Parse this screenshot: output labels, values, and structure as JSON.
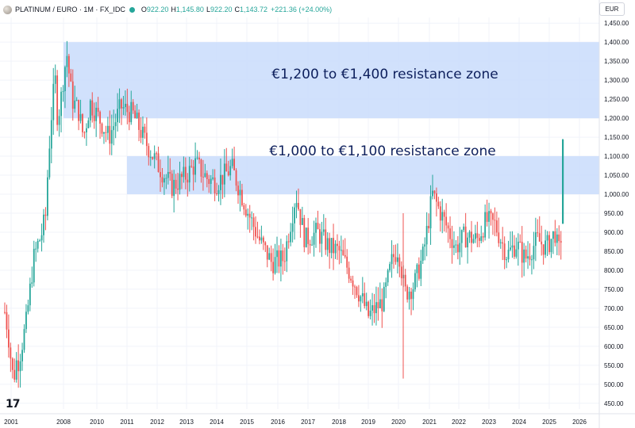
{
  "header": {
    "symbol": "PLATINUM / EURO · 1M · FX_IDC",
    "open_label": "O",
    "open": "922.20",
    "high_label": "H",
    "high": "1,145.80",
    "low_label": "L",
    "low": "922.20",
    "close_label": "C",
    "close": "1,143.72",
    "change": "+221.36 (+24.00%)"
  },
  "currency": "EUR",
  "logo": "17",
  "colors": {
    "up": "#26a69a",
    "down": "#ef5350",
    "zone_fill": "#c9dcfb",
    "zone_text": "#0d1f5c",
    "grid": "#f0f3fa",
    "axis_text": "#131722"
  },
  "chart_data": {
    "type": "candlestick",
    "symbol": "PLATINUM / EURO",
    "interval": "1M",
    "source": "FX_IDC",
    "currency": "EUR",
    "x_ticks": [
      "2001",
      "2008",
      "2010",
      "2011",
      "2012",
      "2013",
      "2014",
      "2015",
      "2016",
      "2017",
      "2018",
      "2019",
      "2020",
      "2021",
      "2022",
      "2023",
      "2024",
      "2025",
      "2026"
    ],
    "y_ticks": [
      "450.00",
      "500.00",
      "550.00",
      "600.00",
      "650.00",
      "700.00",
      "750.00",
      "800.00",
      "850.00",
      "900.00",
      "950.00",
      "1,000.00",
      "1,050.00",
      "1,100.00",
      "1,150.00",
      "1,200.00",
      "1,250.00",
      "1,300.00",
      "1,350.00",
      "1,400.00",
      "1,450.00"
    ],
    "ylim": [
      435,
      1465
    ],
    "grid": true,
    "annotations": [
      {
        "label": "€1,200 to €1,400 resistance zone",
        "y_low": 1200,
        "y_high": 1400,
        "x_start": "2008",
        "x_end": "2026"
      },
      {
        "label": "€1,000 to €1,100 resistance zone",
        "y_low": 1000,
        "y_high": 1100,
        "x_start": "2011",
        "x_end": "2026"
      }
    ],
    "waypoints": [
      [
        2000.0,
        690
      ],
      [
        2000.5,
        640
      ],
      [
        2001.0,
        560
      ],
      [
        2001.3,
        510
      ],
      [
        2001.8,
        570
      ],
      [
        2002.0,
        560
      ],
      [
        2002.5,
        610
      ],
      [
        2003.0,
        660
      ],
      [
        2003.6,
        760
      ],
      [
        2004.0,
        830
      ],
      [
        2004.6,
        870
      ],
      [
        2005.0,
        890
      ],
      [
        2005.6,
        940
      ],
      [
        2006.0,
        1100
      ],
      [
        2006.5,
        1240
      ],
      [
        2006.9,
        1300
      ],
      [
        2007.2,
        1200
      ],
      [
        2007.6,
        1240
      ],
      [
        2008.0,
        1310
      ],
      [
        2008.2,
        1370
      ],
      [
        2008.5,
        1250
      ],
      [
        2008.9,
        1220
      ],
      [
        2009.2,
        1150
      ],
      [
        2009.6,
        1240
      ],
      [
        2010.0,
        1210
      ],
      [
        2010.4,
        1150
      ],
      [
        2010.8,
        1230
      ],
      [
        2011.2,
        1210
      ],
      [
        2011.6,
        1140
      ],
      [
        2012.0,
        1080
      ],
      [
        2012.5,
        1020
      ],
      [
        2013.0,
        1050
      ],
      [
        2013.3,
        1080
      ],
      [
        2013.7,
        1040
      ],
      [
        2014.0,
        1030
      ],
      [
        2014.5,
        1070
      ],
      [
        2015.0,
        960
      ],
      [
        2015.4,
        880
      ],
      [
        2015.8,
        820
      ],
      [
        2016.2,
        830
      ],
      [
        2016.6,
        1000
      ],
      [
        2016.9,
        880
      ],
      [
        2017.3,
        900
      ],
      [
        2017.7,
        860
      ],
      [
        2018.0,
        850
      ],
      [
        2018.4,
        790
      ],
      [
        2018.8,
        720
      ],
      [
        2019.0,
        680
      ],
      [
        2019.5,
        720
      ],
      [
        2019.8,
        830
      ],
      [
        2020.0,
        860
      ],
      [
        2020.2,
        740
      ],
      [
        2020.5,
        760
      ],
      [
        2020.8,
        840
      ],
      [
        2021.1,
        1000
      ],
      [
        2021.5,
        930
      ],
      [
        2021.9,
        860
      ],
      [
        2022.2,
        890
      ],
      [
        2022.6,
        880
      ],
      [
        2022.9,
        930
      ],
      [
        2023.2,
        920
      ],
      [
        2023.6,
        840
      ],
      [
        2023.9,
        870
      ],
      [
        2024.2,
        830
      ],
      [
        2024.6,
        880
      ],
      [
        2024.9,
        860
      ],
      [
        2025.2,
        900
      ],
      [
        2025.3,
        840
      ],
      [
        2025.45,
        922
      ]
    ],
    "last_candle": {
      "open": 922.2,
      "high": 1145.8,
      "low": 922.2,
      "close": 1143.72,
      "change": 221.36,
      "change_pct": 24.0
    }
  }
}
